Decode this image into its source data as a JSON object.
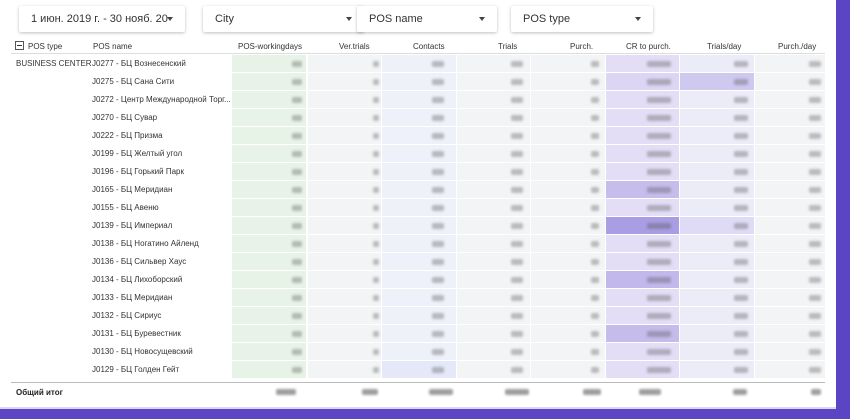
{
  "filters": {
    "date_range": "1 июн. 2019 г. - 30 нояб. 20",
    "city": "City",
    "pos_name": "POS name",
    "pos_type": "POS type"
  },
  "table": {
    "headers": {
      "pos_type": "POS type",
      "pos_name": "POS name",
      "pos_workingdays": "POS-workingdays",
      "ver_trials": "Ver.trials",
      "contacts": "Contacts",
      "trials": "Trials",
      "purch": "Purch.",
      "cr_to_purch": "CR to purch.",
      "trials_day": "Trials/day",
      "purch_day": "Purch./day"
    },
    "group_label": "BUSINESS CENTER",
    "rows": [
      "J0277 - БЦ Вознесенский",
      "J0275 - БЦ Сана Сити",
      "J0272 - Центр Международной Торг...",
      "J0270 - БЦ Сувар",
      "J0222 - БЦ Призма",
      "J0199 - БЦ Желтый угол",
      "J0196 - БЦ Горький Парк",
      "J0165 - БЦ Меридиан",
      "J0155 - БЦ Авеню",
      "J0139 - БЦ Империал",
      "J0138 - БЦ Ногатино Айленд",
      "J0136 - БЦ Сильвер Хаус",
      "J0134 - БЦ Лихоборский",
      "J0133 - БЦ Меридиан",
      "J0132 - БЦ Сириус",
      "J0131 - БЦ Буревестник",
      "J0130 - БЦ Новосущевский",
      "J0129 - БЦ Голден Гейт"
    ],
    "total_label": "Общий итог"
  },
  "colors": {
    "accent_frame": "#5b45c4",
    "green_tint": "#e6f2e6",
    "purple_tint": "#d6d0f2"
  }
}
